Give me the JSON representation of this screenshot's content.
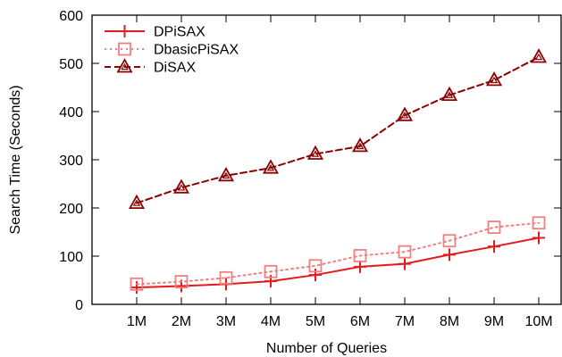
{
  "chart_data": {
    "type": "line",
    "xlabel": "Number of Queries",
    "ylabel": "Search Time (Seconds)",
    "categories": [
      "1M",
      "2M",
      "3M",
      "4M",
      "5M",
      "6M",
      "7M",
      "8M",
      "9M",
      "10M"
    ],
    "ylim": [
      0,
      600
    ],
    "yticks": [
      0,
      100,
      200,
      300,
      400,
      500,
      600
    ],
    "grid": false,
    "legend_position": "top-left",
    "series": [
      {
        "name": "DPiSAX",
        "values": [
          35,
          38,
          42,
          48,
          61,
          78,
          84,
          103,
          120,
          138
        ],
        "color": "#e41a1c",
        "line_style": "solid",
        "marker": "plus"
      },
      {
        "name": "DbasicPiSAX",
        "values": [
          42,
          47,
          55,
          68,
          80,
          101,
          109,
          132,
          160,
          169
        ],
        "color": "#f08080",
        "line_style": "dotted",
        "marker": "square"
      },
      {
        "name": "DiSAX",
        "values": [
          210,
          242,
          267,
          283,
          312,
          328,
          392,
          434,
          465,
          513
        ],
        "color": "#8b0000",
        "line_style": "dashed",
        "marker": "triangle"
      }
    ]
  }
}
